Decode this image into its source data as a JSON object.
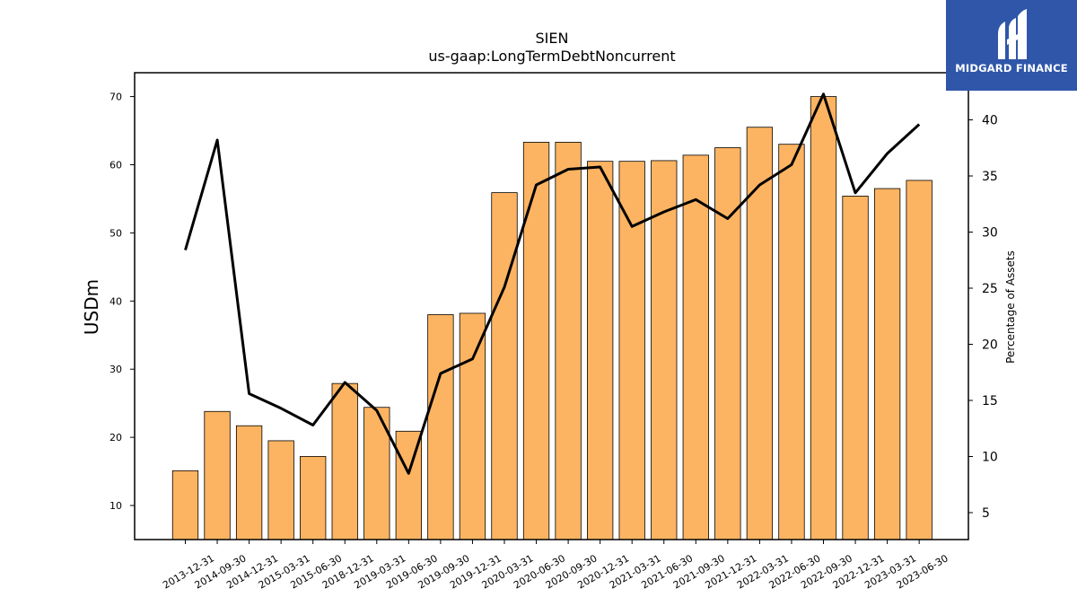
{
  "brand": {
    "name": "MIDGARD FINANCE",
    "bg_color": "#2f56a8",
    "icon": "mf-monogram-icon"
  },
  "chart_data": {
    "type": "bar",
    "title": "SIEN",
    "subtitle": "us-gaap:LongTermDebtNoncurrent",
    "ylabel": "USDm",
    "y2label": "Percentage of Assets",
    "ylim": [
      5,
      73.5
    ],
    "y2lim": [
      2.6,
      44.2
    ],
    "yticks": [
      10,
      20,
      30,
      40,
      50,
      60,
      70
    ],
    "y2ticks": [
      5,
      10,
      15,
      20,
      25,
      30,
      35,
      40
    ],
    "bar_color": "#fdb462",
    "line_color": "#000000",
    "grid": false,
    "categories": [
      "2013-12-31",
      "2014-09-30",
      "2014-12-31",
      "2015-03-31",
      "2015-06-30",
      "2018-12-31",
      "2019-03-31",
      "2019-06-30",
      "2019-09-30",
      "2019-12-31",
      "2020-03-31",
      "2020-06-30",
      "2020-09-30",
      "2020-12-31",
      "2021-03-31",
      "2021-06-30",
      "2021-09-30",
      "2021-12-31",
      "2022-03-31",
      "2022-06-30",
      "2022-09-30",
      "2022-12-31",
      "2023-03-31",
      "2023-06-30"
    ],
    "series": [
      {
        "type": "bar",
        "axis": "left",
        "values": [
          15.1,
          23.8,
          21.7,
          19.5,
          17.2,
          27.9,
          24.4,
          20.9,
          38.0,
          38.2,
          55.9,
          63.3,
          63.3,
          60.5,
          60.5,
          60.6,
          61.4,
          62.5,
          65.5,
          63.0,
          70.0,
          55.4,
          56.5,
          57.7
        ]
      },
      {
        "type": "line",
        "axis": "right",
        "values": [
          28.4,
          38.2,
          15.6,
          14.3,
          12.8,
          16.6,
          14.1,
          8.5,
          17.4,
          18.7,
          25.1,
          34.2,
          35.6,
          35.8,
          30.5,
          31.8,
          32.9,
          31.2,
          34.2,
          36.0,
          42.3,
          33.5,
          37.0,
          39.6
        ]
      }
    ]
  }
}
